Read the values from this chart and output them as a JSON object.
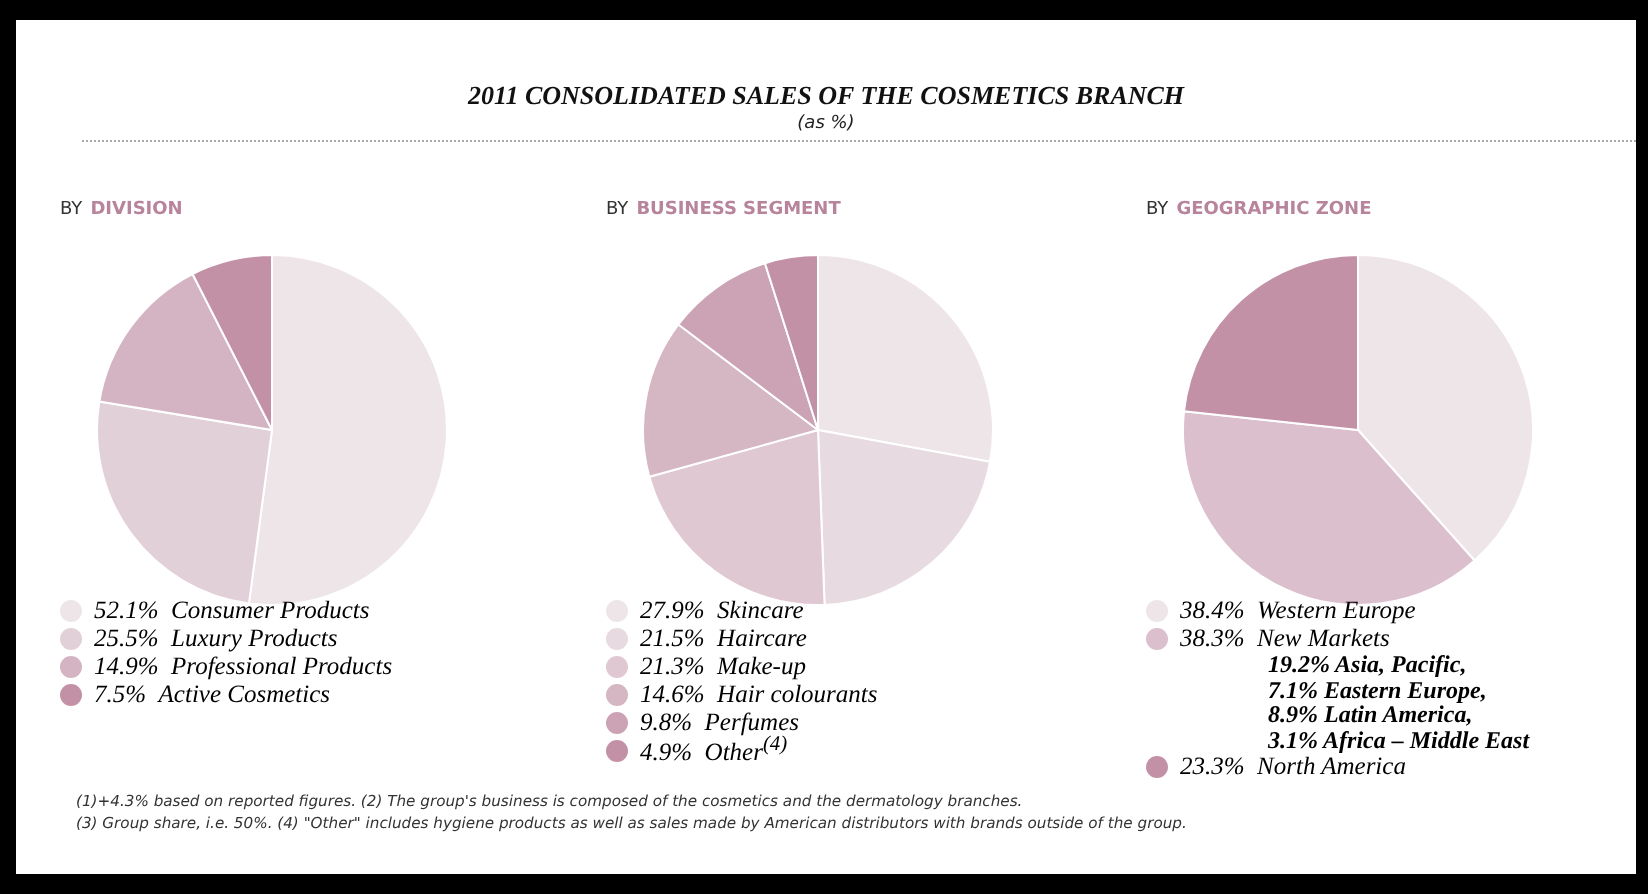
{
  "chart_data": [
    {
      "type": "other",
      "title": "2011 CONSOLIDATED SALES OF THE COSMETICS BRANCH",
      "subtitle": "(as %)",
      "annotations": [
        "(1)+4.3% based on reported figures. (2) The group's business is composed of the cosmetics and the dermatology branches.",
        "(3) Group share, i.e. 50%. (4) \"Other\" includes hygiene products as well as sales made by American distributors with brands outside of the group."
      ]
    },
    {
      "type": "pie",
      "title": "BY DIVISION",
      "categories": [
        "Consumer Products",
        "Luxury Products",
        "Professional Products",
        "Active Cosmetics"
      ],
      "values": [
        52.1,
        25.5,
        14.9,
        7.5
      ],
      "value_labels": [
        "52.1%",
        "25.5%",
        "14.9%",
        "7.5%"
      ],
      "colors": [
        "#eee5e9",
        "#e2d0d8",
        "#d4b4c2",
        "#c391a6"
      ],
      "legend": "bottom"
    },
    {
      "type": "pie",
      "title": "BY BUSINESS SEGMENT",
      "categories": [
        "Skincare",
        "Haircare",
        "Make-up",
        "Hair colourants",
        "Perfumes",
        "Other$^{(4)}$"
      ],
      "values": [
        27.9,
        21.5,
        21.3,
        14.6,
        9.8,
        4.9
      ],
      "value_labels": [
        "27.9%",
        "21.5%",
        "21.3%",
        "14.6%",
        "9.8%",
        "4.9%"
      ],
      "colors": [
        "#eee5e9",
        "#e7dae0",
        "#dfc8d2",
        "#d5b6c3",
        "#cca3b5",
        "#c391a6"
      ],
      "legend": "bottom"
    },
    {
      "type": "pie",
      "title": "BY GEOGRAPHIC ZONE",
      "categories": [
        "Western Europe",
        "New Markets",
        "North America"
      ],
      "values": [
        38.4,
        38.3,
        23.3
      ],
      "value_labels": [
        "38.4%",
        "38.3%",
        "23.3%"
      ],
      "colors": [
        "#eee5e9",
        "#dbbfcd",
        "#c391a6"
      ],
      "legend": "bottom",
      "annotations": [
        "19.2% Asia, Pacific,",
        "7.1% Eastern Europe,",
        "8.9% Latin America,",
        "3.1% Africa – Middle East"
      ]
    }
  ]
}
